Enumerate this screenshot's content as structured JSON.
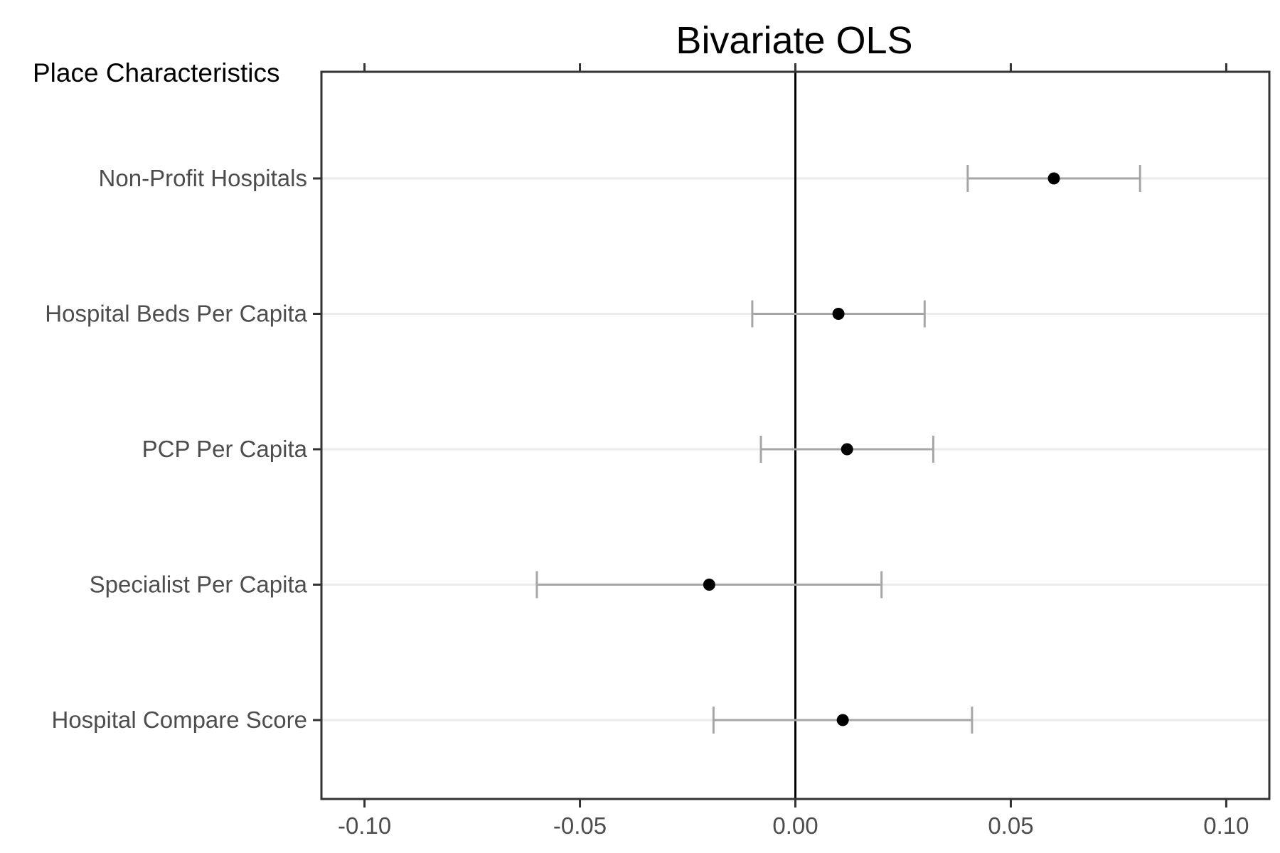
{
  "chart_data": {
    "type": "forest",
    "title": "Bivariate OLS",
    "section_label": "Place Characteristics",
    "xlabel": "",
    "ylabel": "",
    "xlim": [
      -0.11,
      0.11
    ],
    "x_ticks": [
      -0.1,
      -0.05,
      0.0,
      0.05,
      0.1
    ],
    "x_tick_labels": [
      "-0.10",
      "-0.05",
      "0.00",
      "0.05",
      "0.10"
    ],
    "reference_line": 0,
    "grid": "horizontal-major",
    "categories": [
      "Non-Profit Hospitals",
      "Hospital Beds Per Capita",
      "PCP Per Capita",
      "Specialist Per Capita",
      "Hospital Compare Score"
    ],
    "estimates": [
      0.06,
      0.01,
      0.012,
      -0.02,
      0.011
    ],
    "ci_lower": [
      0.04,
      -0.01,
      -0.008,
      -0.06,
      -0.019
    ],
    "ci_upper": [
      0.08,
      0.03,
      0.032,
      0.02,
      0.041
    ],
    "colors": {
      "point": "#000000",
      "errorbar": "#a6a6a6",
      "gridline": "#ebebeb",
      "axis": "#333333",
      "zero_line": "#000000"
    }
  }
}
